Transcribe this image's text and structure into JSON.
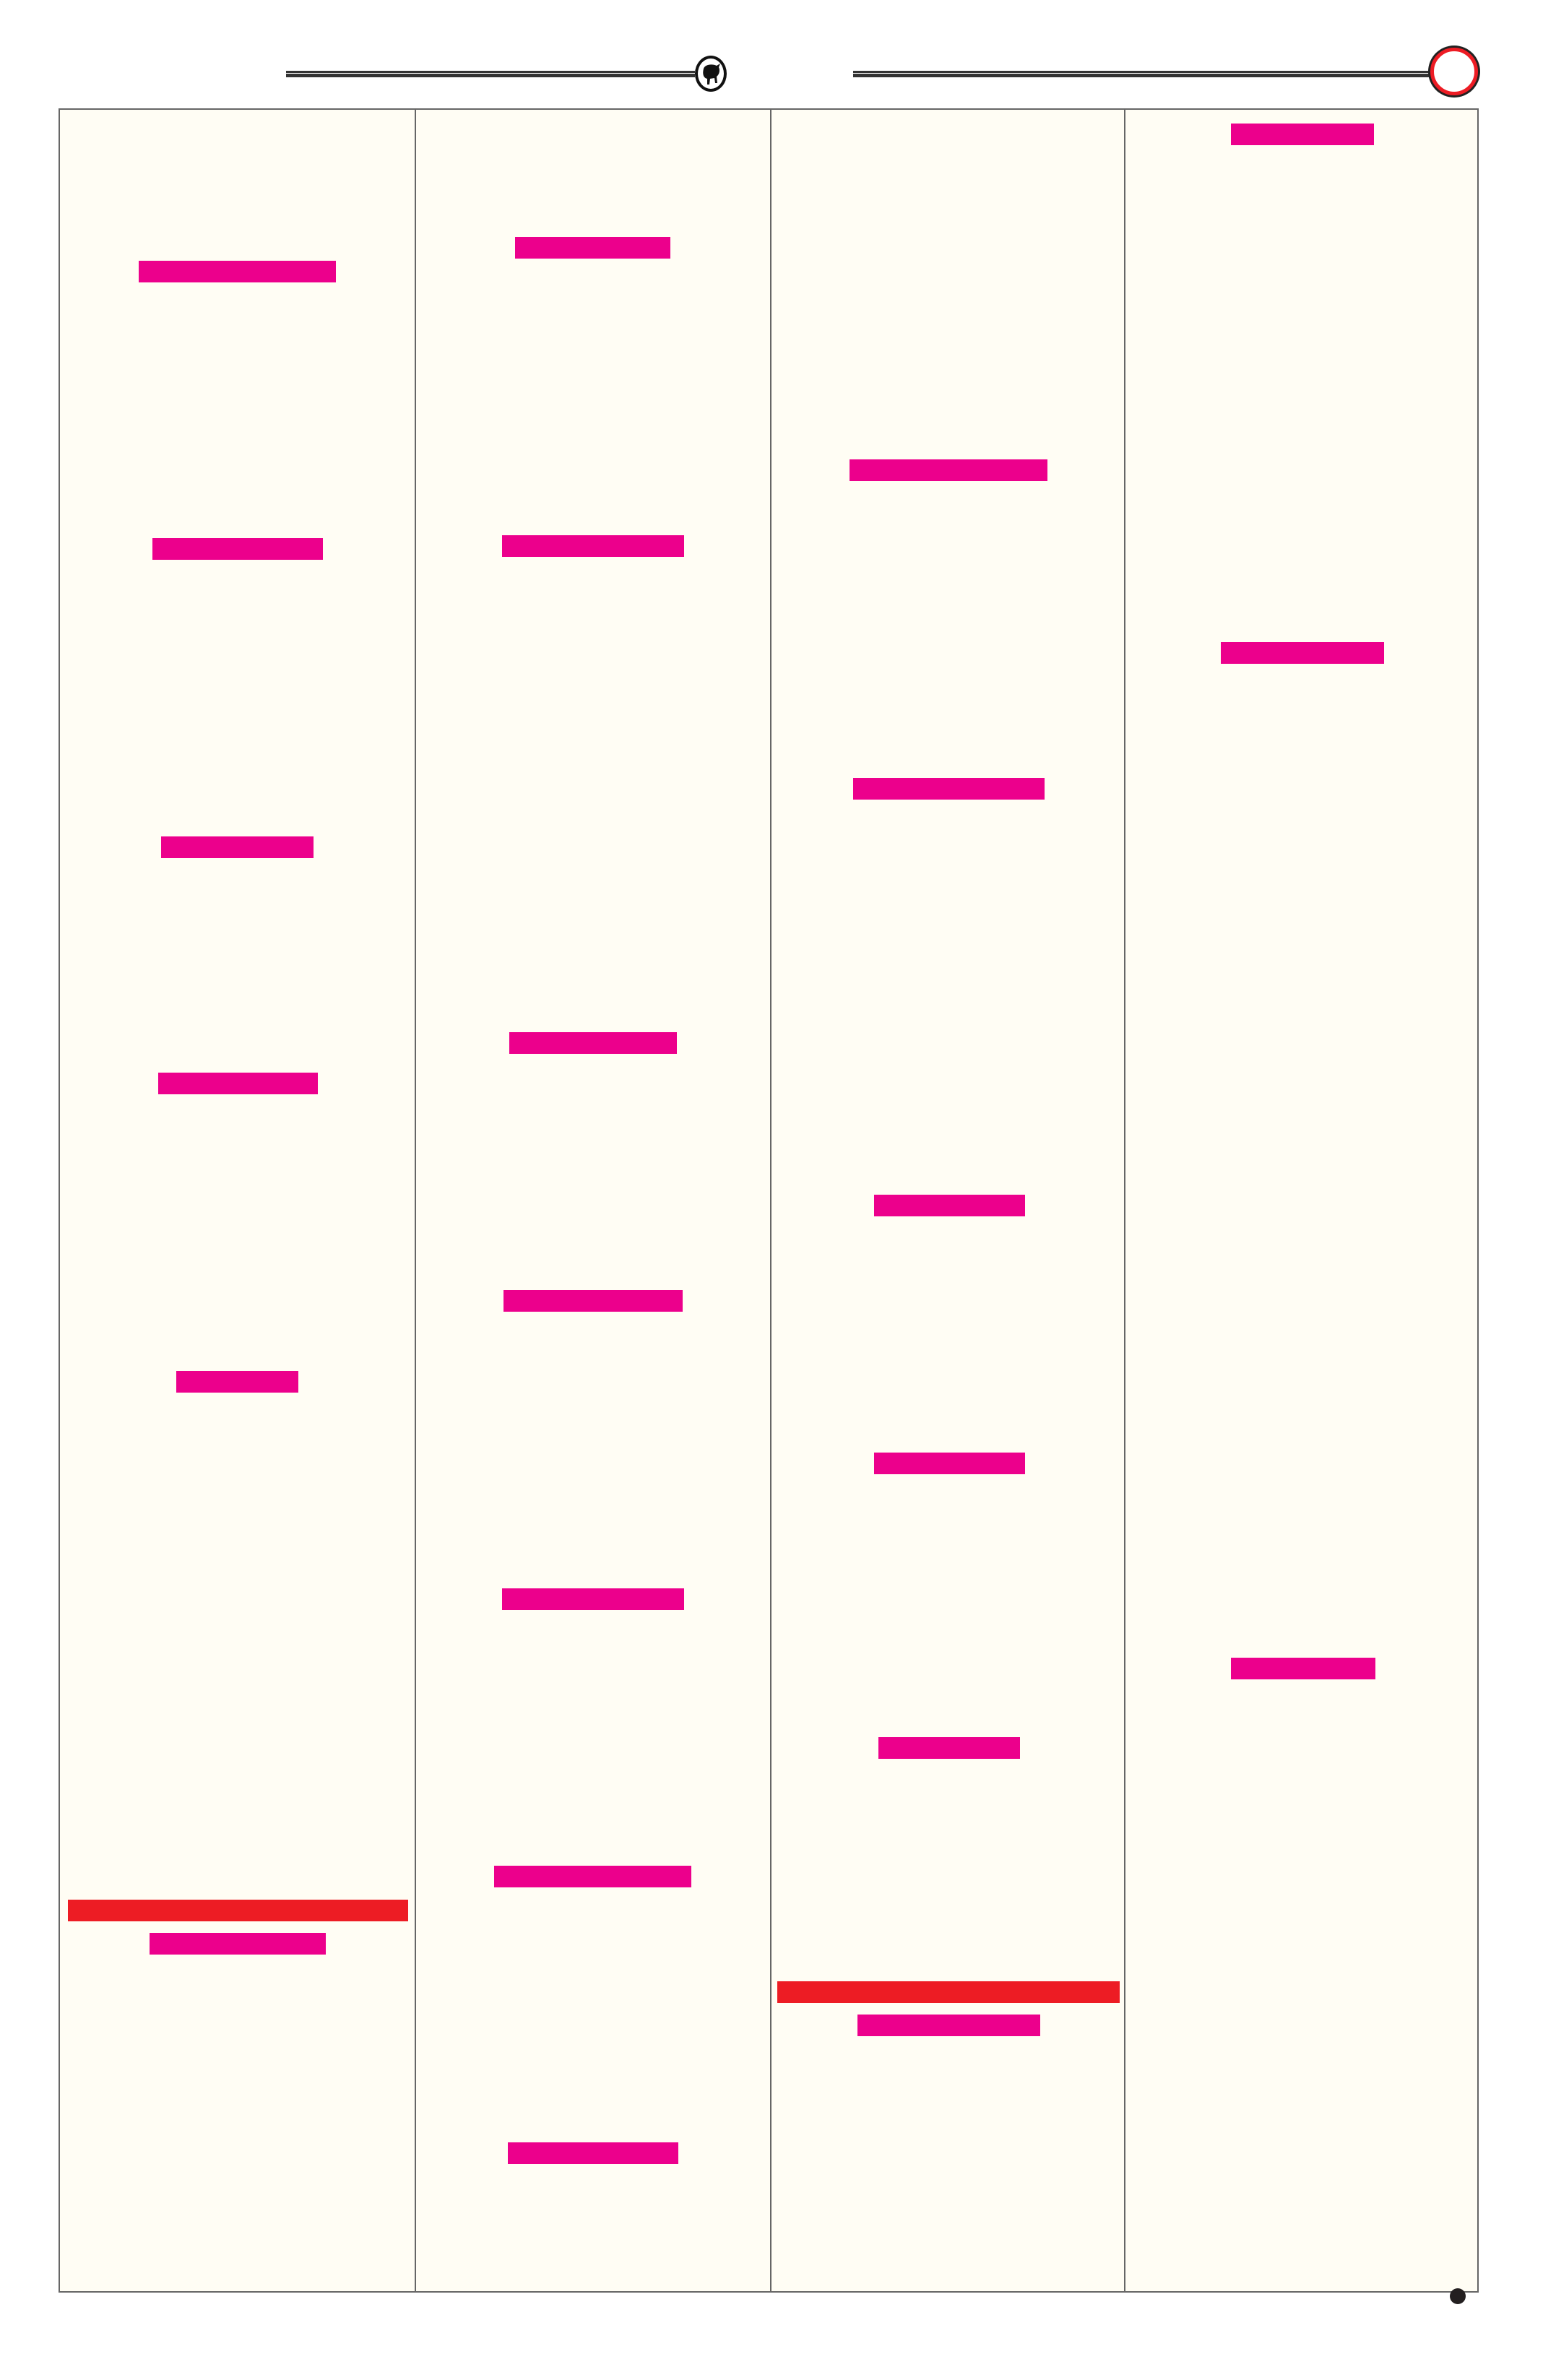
{
  "document": {
    "columns": 4,
    "colors": {
      "background": "#fffdf4",
      "highlight": "#ec008c",
      "alert": "#ed1c24",
      "rule": "#333333"
    },
    "header": {
      "emblem_icon": "bull-emblem-icon",
      "ring_icon": "red-ring-icon"
    },
    "footer": {
      "marker_icon": "black-dot-icon"
    },
    "redacted_blocks": [
      {
        "column": 1,
        "items": [
          "highlight",
          "highlight",
          "highlight",
          "highlight",
          "highlight",
          "alert",
          "highlight"
        ]
      },
      {
        "column": 2,
        "items": [
          "highlight",
          "highlight",
          "highlight",
          "highlight",
          "highlight",
          "highlight",
          "highlight"
        ]
      },
      {
        "column": 3,
        "items": [
          "highlight",
          "highlight",
          "highlight",
          "highlight",
          "highlight",
          "alert",
          "highlight"
        ]
      },
      {
        "column": 4,
        "items": [
          "highlight",
          "highlight",
          "highlight"
        ]
      }
    ]
  }
}
